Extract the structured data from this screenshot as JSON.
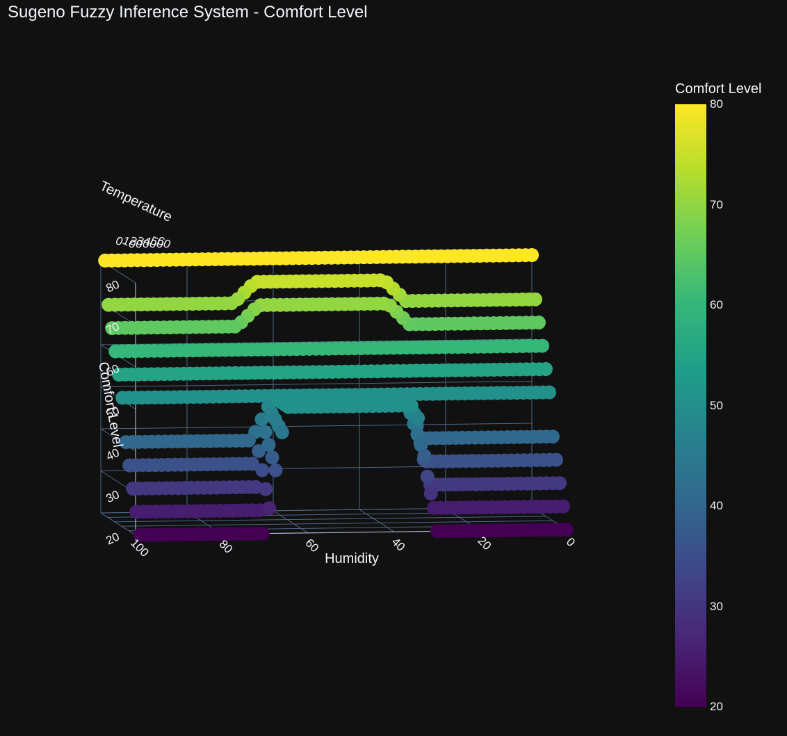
{
  "chart_data": {
    "type": "scatter3d",
    "title": "Sugeno Fuzzy Inference System - Comfort Level",
    "xlabel": "Humidity",
    "ylabel": "Temperature",
    "zlabel": "Comfort Level",
    "x_range": [
      0,
      100
    ],
    "z_range": [
      20,
      80
    ],
    "x_ticks": [
      "100",
      "80",
      "60",
      "40",
      "20",
      "0"
    ],
    "z_ticks": [
      "80",
      "70",
      "60",
      "50",
      "40",
      "30",
      "20"
    ],
    "y_ticks_visible": [
      "0",
      "10",
      "20",
      "30",
      "40",
      "50",
      "60"
    ],
    "colorbar": {
      "title": "Comfort Level",
      "colorscale": "Viridis",
      "range": [
        20,
        80
      ],
      "ticks": [
        "80",
        "70",
        "60",
        "50",
        "40",
        "30",
        "20"
      ]
    },
    "comfort_rule_humidity_bands": {
      "high_comfort_humidity_range": [
        35,
        65
      ],
      "transition_low": [
        30,
        35
      ],
      "transition_high": [
        65,
        70
      ]
    },
    "temperature_levels": [
      0,
      10,
      20,
      30,
      40,
      50,
      60,
      70,
      80,
      90,
      100
    ],
    "layers": [
      {
        "temperature": 0,
        "low_comfort": 20,
        "peak_comfort": 50
      },
      {
        "temperature": 10,
        "low_comfort": 25,
        "peak_comfort": 50
      },
      {
        "temperature": 20,
        "low_comfort": 30,
        "peak_comfort": 50
      },
      {
        "temperature": 30,
        "low_comfort": 35,
        "peak_comfort": 50
      },
      {
        "temperature": 40,
        "low_comfort": 40,
        "peak_comfort": 50
      },
      {
        "temperature": 50,
        "low_comfort": 50,
        "peak_comfort": 50
      },
      {
        "temperature": 60,
        "low_comfort": 55,
        "peak_comfort": 55
      },
      {
        "temperature": 70,
        "low_comfort": 60,
        "peak_comfort": 60
      },
      {
        "temperature": 80,
        "low_comfort": 65,
        "peak_comfort": 70
      },
      {
        "temperature": 90,
        "low_comfort": 70,
        "peak_comfort": 75
      },
      {
        "temperature": 100,
        "low_comfort": 80,
        "peak_comfort": 80
      }
    ]
  }
}
